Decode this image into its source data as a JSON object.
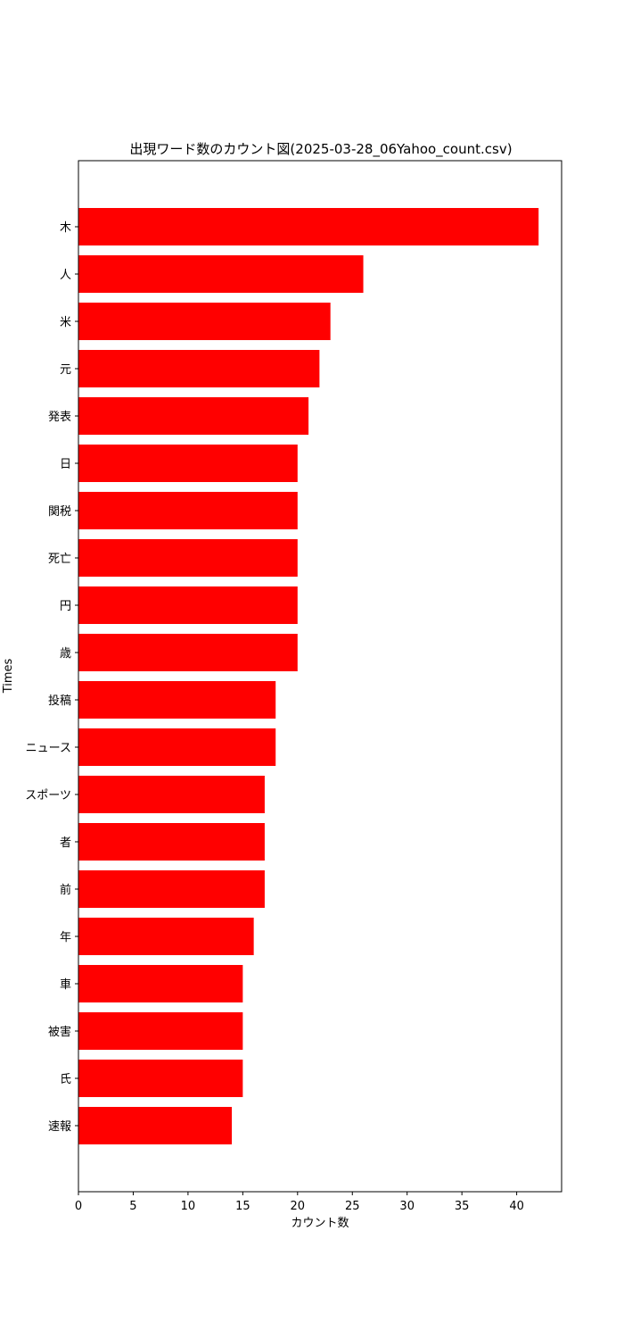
{
  "chart_data": {
    "type": "bar",
    "orientation": "horizontal",
    "title": "出現ワード数のカウント図(2025-03-28_06Yahoo_count.csv)",
    "xlabel": "カウント数",
    "ylabel": "Times",
    "categories": [
      "木",
      "人",
      "米",
      "元",
      "発表",
      "日",
      "関税",
      "死亡",
      "円",
      "歳",
      "投稿",
      "ニュース",
      "スポーツ",
      "者",
      "前",
      "年",
      "車",
      "被害",
      "氏",
      "速報"
    ],
    "values": [
      42,
      26,
      23,
      22,
      21,
      20,
      20,
      20,
      20,
      20,
      18,
      18,
      17,
      17,
      17,
      16,
      15,
      15,
      15,
      14
    ],
    "xlim": [
      0,
      44.1
    ],
    "xticks": [
      0,
      5,
      10,
      15,
      20,
      25,
      30,
      35,
      40
    ],
    "grid": false,
    "legend": "none",
    "bar_color": "#ff0000"
  }
}
